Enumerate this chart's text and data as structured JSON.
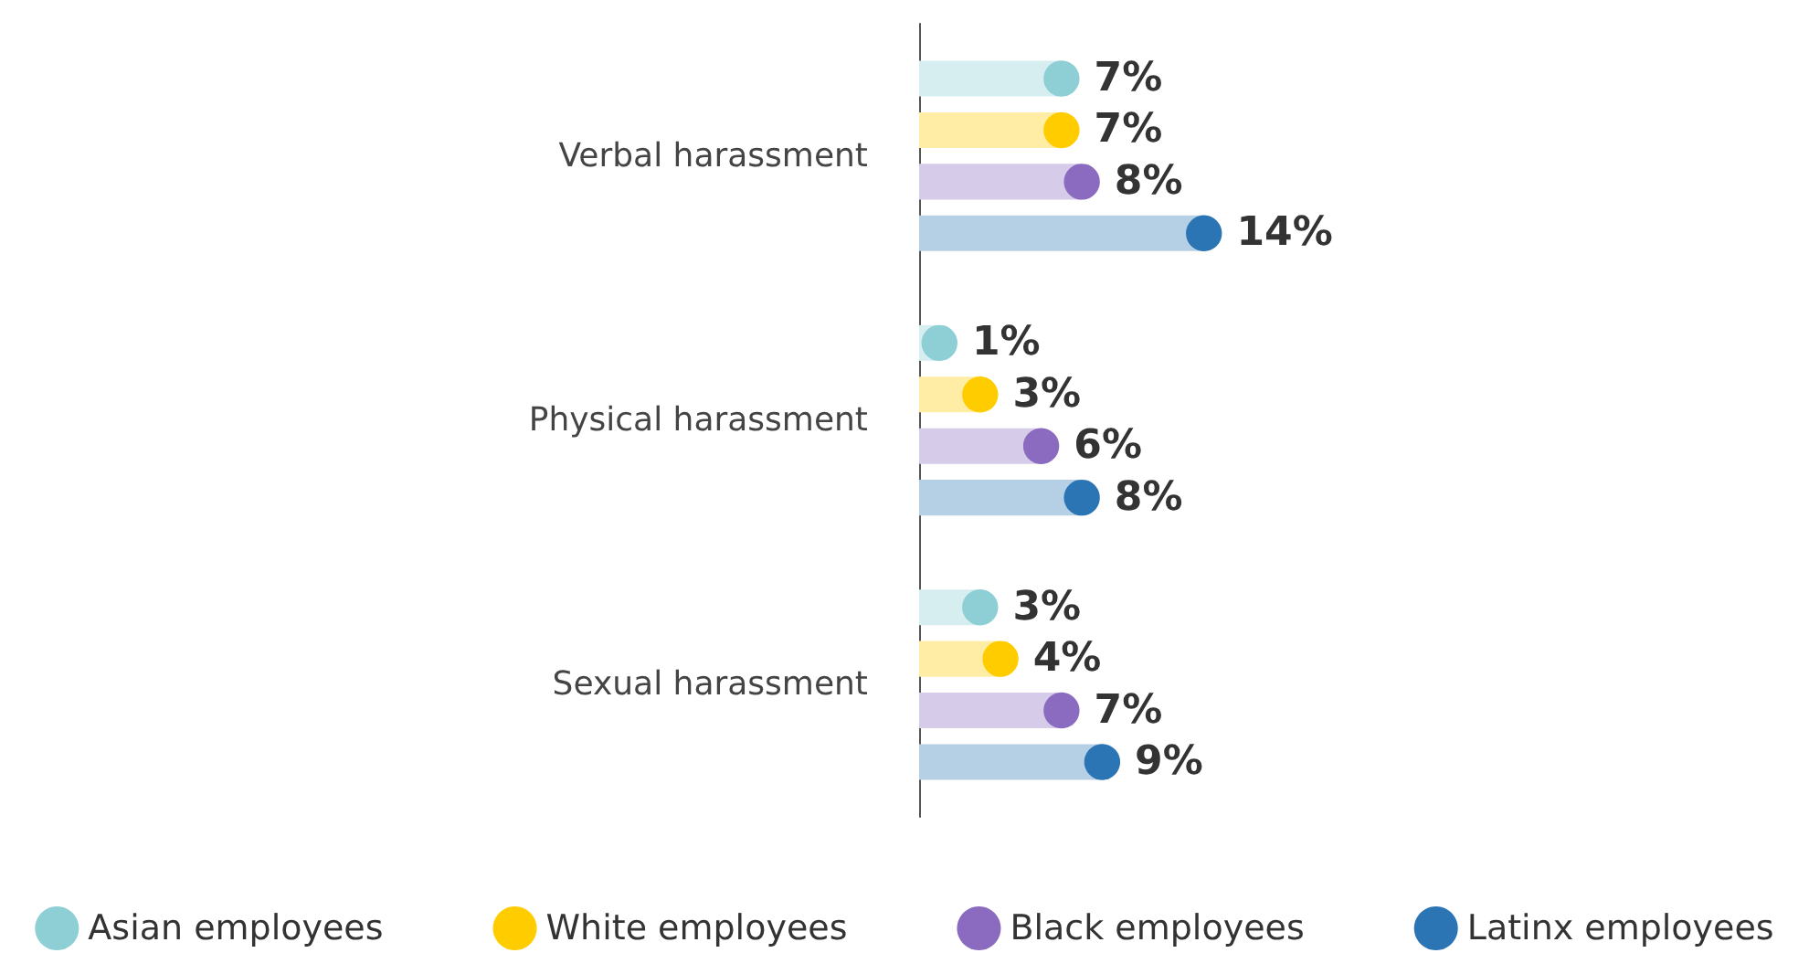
{
  "chart_data": {
    "type": "lollipop",
    "orientation": "horizontal",
    "categories": [
      "Verbal harassment",
      "Physical harassment",
      "Sexual harassment"
    ],
    "series": [
      {
        "name": "Asian employees",
        "color": "#8ecfd6",
        "values": [
          7,
          1,
          3
        ],
        "value_labels": [
          "7%",
          "1%",
          "3%"
        ]
      },
      {
        "name": "White employees",
        "color": "#ffcc00",
        "values": [
          7,
          3,
          4
        ],
        "value_labels": [
          "7%",
          "3%",
          "4%"
        ]
      },
      {
        "name": "Black employees",
        "color": "#8a6bbf",
        "values": [
          8,
          6,
          7
        ],
        "value_labels": [
          "8%",
          "6%",
          "7%"
        ]
      },
      {
        "name": "Latinx employees",
        "color": "#2c75b5",
        "values": [
          14,
          8,
          9
        ],
        "value_labels": [
          "14%",
          "8%",
          "9%"
        ]
      }
    ],
    "legend": "bottom",
    "tick_labels": "y",
    "marker": "circle"
  }
}
